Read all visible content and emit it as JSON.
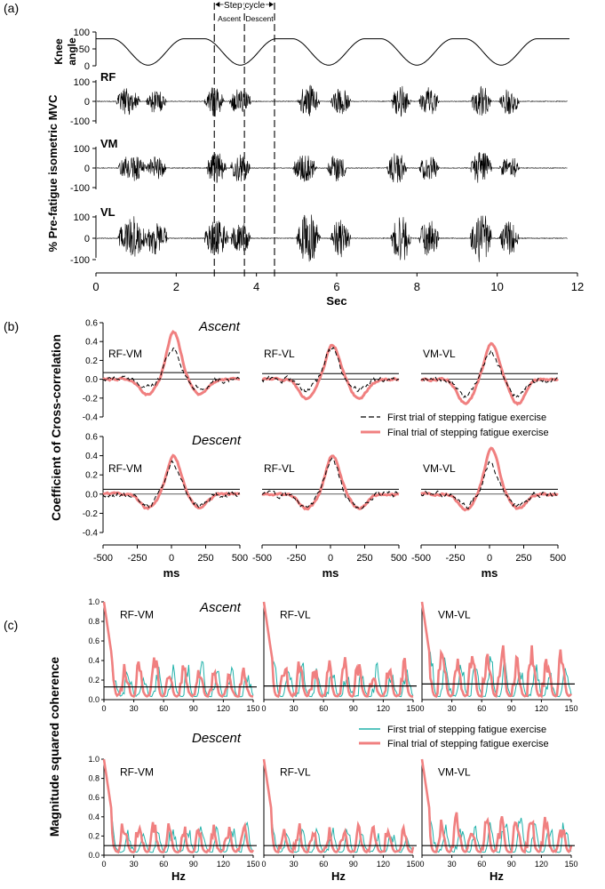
{
  "panel_labels": {
    "a": "(a)",
    "b": "(b)",
    "c": "(c)"
  },
  "colors": {
    "first_dash": "#000000",
    "final_xcorr": "#F08080",
    "first_coh": "#20B2AA",
    "final_coh": "#F08080"
  },
  "chart_data": [
    {
      "id": "a",
      "type": "line",
      "title": "",
      "xlabel": "Sec",
      "ylabel": "% Pre-fatigue isometric MVC",
      "xlim": [
        0,
        12
      ],
      "xticks": [
        "0",
        "2",
        "4",
        "6",
        "8",
        "10",
        "12"
      ],
      "step_cycle": {
        "label": "Step cycle",
        "ascent": "Ascent",
        "descent": "Descent",
        "start": 2.95,
        "mid": 3.7,
        "end": 4.45
      },
      "knee": {
        "label_top": "Knee",
        "label_bottom": "angle",
        "ylim": [
          0,
          100
        ],
        "yticks": [
          "100",
          "50",
          "0"
        ],
        "baseline": 80,
        "minimum": 2,
        "dip_centers": [
          1.3,
          3.6,
          5.8,
          8.0,
          10.1
        ]
      },
      "emg": [
        {
          "name": "RF",
          "yticks": [
            "100",
            "0",
            "-100"
          ],
          "ylim": [
            -100,
            100
          ],
          "bursts": [
            [
              0.8,
              0.6,
              70
            ],
            [
              1.5,
              0.5,
              65
            ],
            [
              2.95,
              0.5,
              80
            ],
            [
              3.6,
              0.55,
              70
            ],
            [
              5.3,
              0.55,
              85
            ],
            [
              6.1,
              0.5,
              70
            ],
            [
              7.6,
              0.5,
              80
            ],
            [
              8.3,
              0.5,
              75
            ],
            [
              9.6,
              0.5,
              80
            ],
            [
              10.3,
              0.5,
              70
            ]
          ]
        },
        {
          "name": "VM",
          "yticks": [
            "100",
            "0",
            "-100"
          ],
          "ylim": [
            -100,
            100
          ],
          "bursts": [
            [
              0.9,
              0.7,
              70
            ],
            [
              1.5,
              0.5,
              60
            ],
            [
              3.0,
              0.5,
              85
            ],
            [
              3.6,
              0.5,
              75
            ],
            [
              5.2,
              0.6,
              70
            ],
            [
              6.0,
              0.5,
              70
            ],
            [
              7.5,
              0.5,
              80
            ],
            [
              8.3,
              0.5,
              70
            ],
            [
              9.6,
              0.55,
              85
            ],
            [
              10.3,
              0.5,
              65
            ]
          ]
        },
        {
          "name": "VL",
          "yticks": [
            "100",
            "0",
            "-100"
          ],
          "ylim": [
            -100,
            100
          ],
          "bursts": [
            [
              0.9,
              0.7,
              105
            ],
            [
              1.5,
              0.6,
              85
            ],
            [
              3.0,
              0.6,
              95
            ],
            [
              3.6,
              0.5,
              80
            ],
            [
              5.3,
              0.6,
              120
            ],
            [
              6.1,
              0.5,
              90
            ],
            [
              7.6,
              0.5,
              115
            ],
            [
              8.3,
              0.5,
              90
            ],
            [
              9.6,
              0.55,
              120
            ],
            [
              10.3,
              0.5,
              80
            ]
          ]
        }
      ]
    },
    {
      "id": "b",
      "type": "line",
      "ylabel": "Coefficient of Cross-correlation",
      "xlabel": "ms",
      "xlim": [
        -500,
        500
      ],
      "ylim": [
        -0.4,
        0.6
      ],
      "xticks": [
        "-500",
        "-250",
        "0",
        "250",
        "500"
      ],
      "yticks": [
        "0.6",
        "0.4",
        "0.2",
        "0.0",
        "-0.2",
        "-0.4"
      ],
      "row_titles": [
        "Ascent",
        "Descent"
      ],
      "legend": [
        "First trial of stepping fatigue exercise",
        "Final trial of stepping fatigue exercise"
      ],
      "plots": [
        {
          "pair": "RF-VM",
          "row": 0,
          "threshold": 0.07,
          "first_peak": 0.35,
          "final_peak": 0.55,
          "final_min": -0.18,
          "first_min": -0.1
        },
        {
          "pair": "RF-VL",
          "row": 0,
          "threshold": 0.06,
          "first_peak": 0.34,
          "final_peak": 0.4,
          "final_min": -0.22,
          "first_min": -0.12
        },
        {
          "pair": "VM-VL",
          "row": 0,
          "threshold": 0.06,
          "first_peak": 0.32,
          "final_peak": 0.42,
          "final_min": -0.28,
          "first_min": -0.2
        },
        {
          "pair": "RF-VM",
          "row": 1,
          "threshold": 0.05,
          "first_peak": 0.32,
          "final_peak": 0.43,
          "final_min": -0.16,
          "first_min": -0.12
        },
        {
          "pair": "RF-VL",
          "row": 1,
          "threshold": 0.05,
          "first_peak": 0.36,
          "final_peak": 0.44,
          "final_min": -0.16,
          "first_min": -0.15
        },
        {
          "pair": "VM-VL",
          "row": 1,
          "threshold": 0.05,
          "first_peak": 0.33,
          "final_peak": 0.51,
          "final_min": -0.17,
          "first_min": -0.14
        }
      ]
    },
    {
      "id": "c",
      "type": "line",
      "ylabel": "Magnitude squared coherence",
      "xlabel": "Hz",
      "xlim": [
        0,
        150
      ],
      "ylim": [
        0,
        1.0
      ],
      "xticks": [
        "0",
        "30",
        "60",
        "90",
        "120",
        "150"
      ],
      "yticks": [
        "1.0",
        "0.8",
        "0.6",
        "0.4",
        "0.2",
        "0.0"
      ],
      "row_titles": [
        "Ascent",
        "Descent"
      ],
      "legend": [
        "First trial of stepping fatigue exercise",
        "Final trial of stepping fatigue exercise"
      ],
      "plots": [
        {
          "pair": "RF-VM",
          "row": 0,
          "threshold": 0.13,
          "amp": 0.32
        },
        {
          "pair": "RF-VL",
          "row": 0,
          "threshold": 0.14,
          "amp": 0.3
        },
        {
          "pair": "VM-VL",
          "row": 0,
          "threshold": 0.16,
          "amp": 0.4
        },
        {
          "pair": "RF-VM",
          "row": 1,
          "threshold": 0.1,
          "amp": 0.25
        },
        {
          "pair": "RF-VL",
          "row": 1,
          "threshold": 0.1,
          "amp": 0.22
        },
        {
          "pair": "VM-VL",
          "row": 1,
          "threshold": 0.1,
          "amp": 0.3
        }
      ]
    }
  ]
}
